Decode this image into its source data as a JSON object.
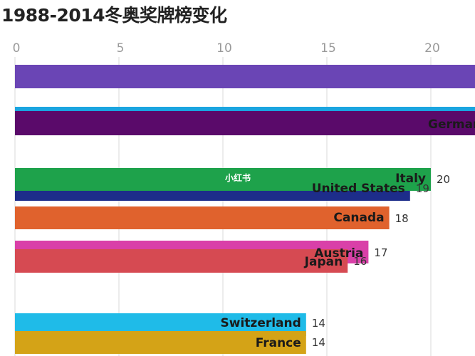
{
  "chart_data": {
    "type": "bar",
    "orientation": "horizontal",
    "title": "1988-2014冬奥奖牌榜变化",
    "xlim": [
      0,
      22.5
    ],
    "x_ticks": [
      0,
      5,
      10,
      15,
      20
    ],
    "grid": true,
    "series": [
      {
        "label": "",
        "value": 23,
        "color": "#6a45b5",
        "show_value": false
      },
      {
        "label": "",
        "value": 23,
        "color": "#1aa5e0",
        "show_value": false
      },
      {
        "label": "Germany",
        "value": 23,
        "color": "#5a0a6a",
        "show_value": false
      },
      {
        "label": "Italy",
        "value": 20,
        "color": "#1ea24b",
        "show_value": true
      },
      {
        "label": "United States",
        "value": 19,
        "color": "#1d2d8a",
        "show_value": true
      },
      {
        "label": "Canada",
        "value": 18,
        "color": "#e0622d",
        "show_value": true
      },
      {
        "label": "Austria",
        "value": 17,
        "color": "#d940a8",
        "show_value": true
      },
      {
        "label": "Japan",
        "value": 16,
        "color": "#d64a52",
        "show_value": true
      },
      {
        "label": "Switzerland",
        "value": 14,
        "color": "#1fbbe8",
        "show_value": true
      },
      {
        "label": "France",
        "value": 14,
        "color": "#d4a317",
        "show_value": true
      }
    ]
  },
  "watermark": "小红书"
}
